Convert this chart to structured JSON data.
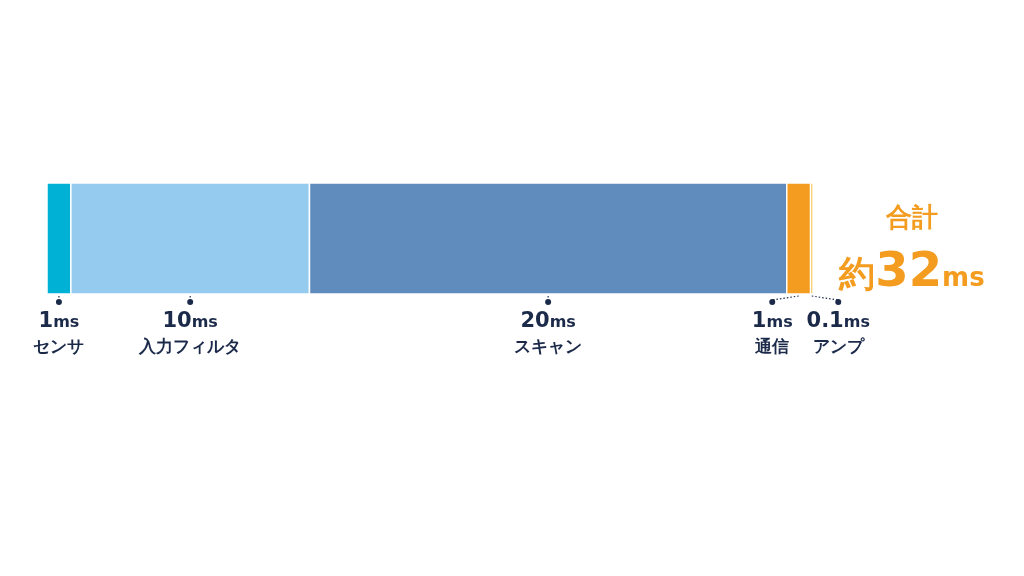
{
  "chart_data": {
    "type": "bar",
    "orientation": "horizontal",
    "stacked": true,
    "categories": [
      null
    ],
    "series": [
      {
        "name": "センサ",
        "color": "#00b1d6",
        "values": [
          1
        ],
        "value_labels": [
          "1ms"
        ]
      },
      {
        "name": "入力フィルタ",
        "color": "#95cbee",
        "values": [
          10
        ],
        "value_labels": [
          "10ms"
        ]
      },
      {
        "name": "スキャン",
        "color": "#608bbd",
        "values": [
          20
        ],
        "value_labels": [
          "20ms"
        ]
      },
      {
        "name": "通信",
        "color": "#f39c1f",
        "values": [
          1
        ],
        "value_labels": [
          "1ms"
        ]
      },
      {
        "name": "アンプ",
        "color": "#f7b733",
        "values": [
          0.1
        ],
        "value_labels": [
          "0.1ms"
        ]
      }
    ],
    "annotations": [
      "合計",
      "約32ms"
    ]
  }
}
